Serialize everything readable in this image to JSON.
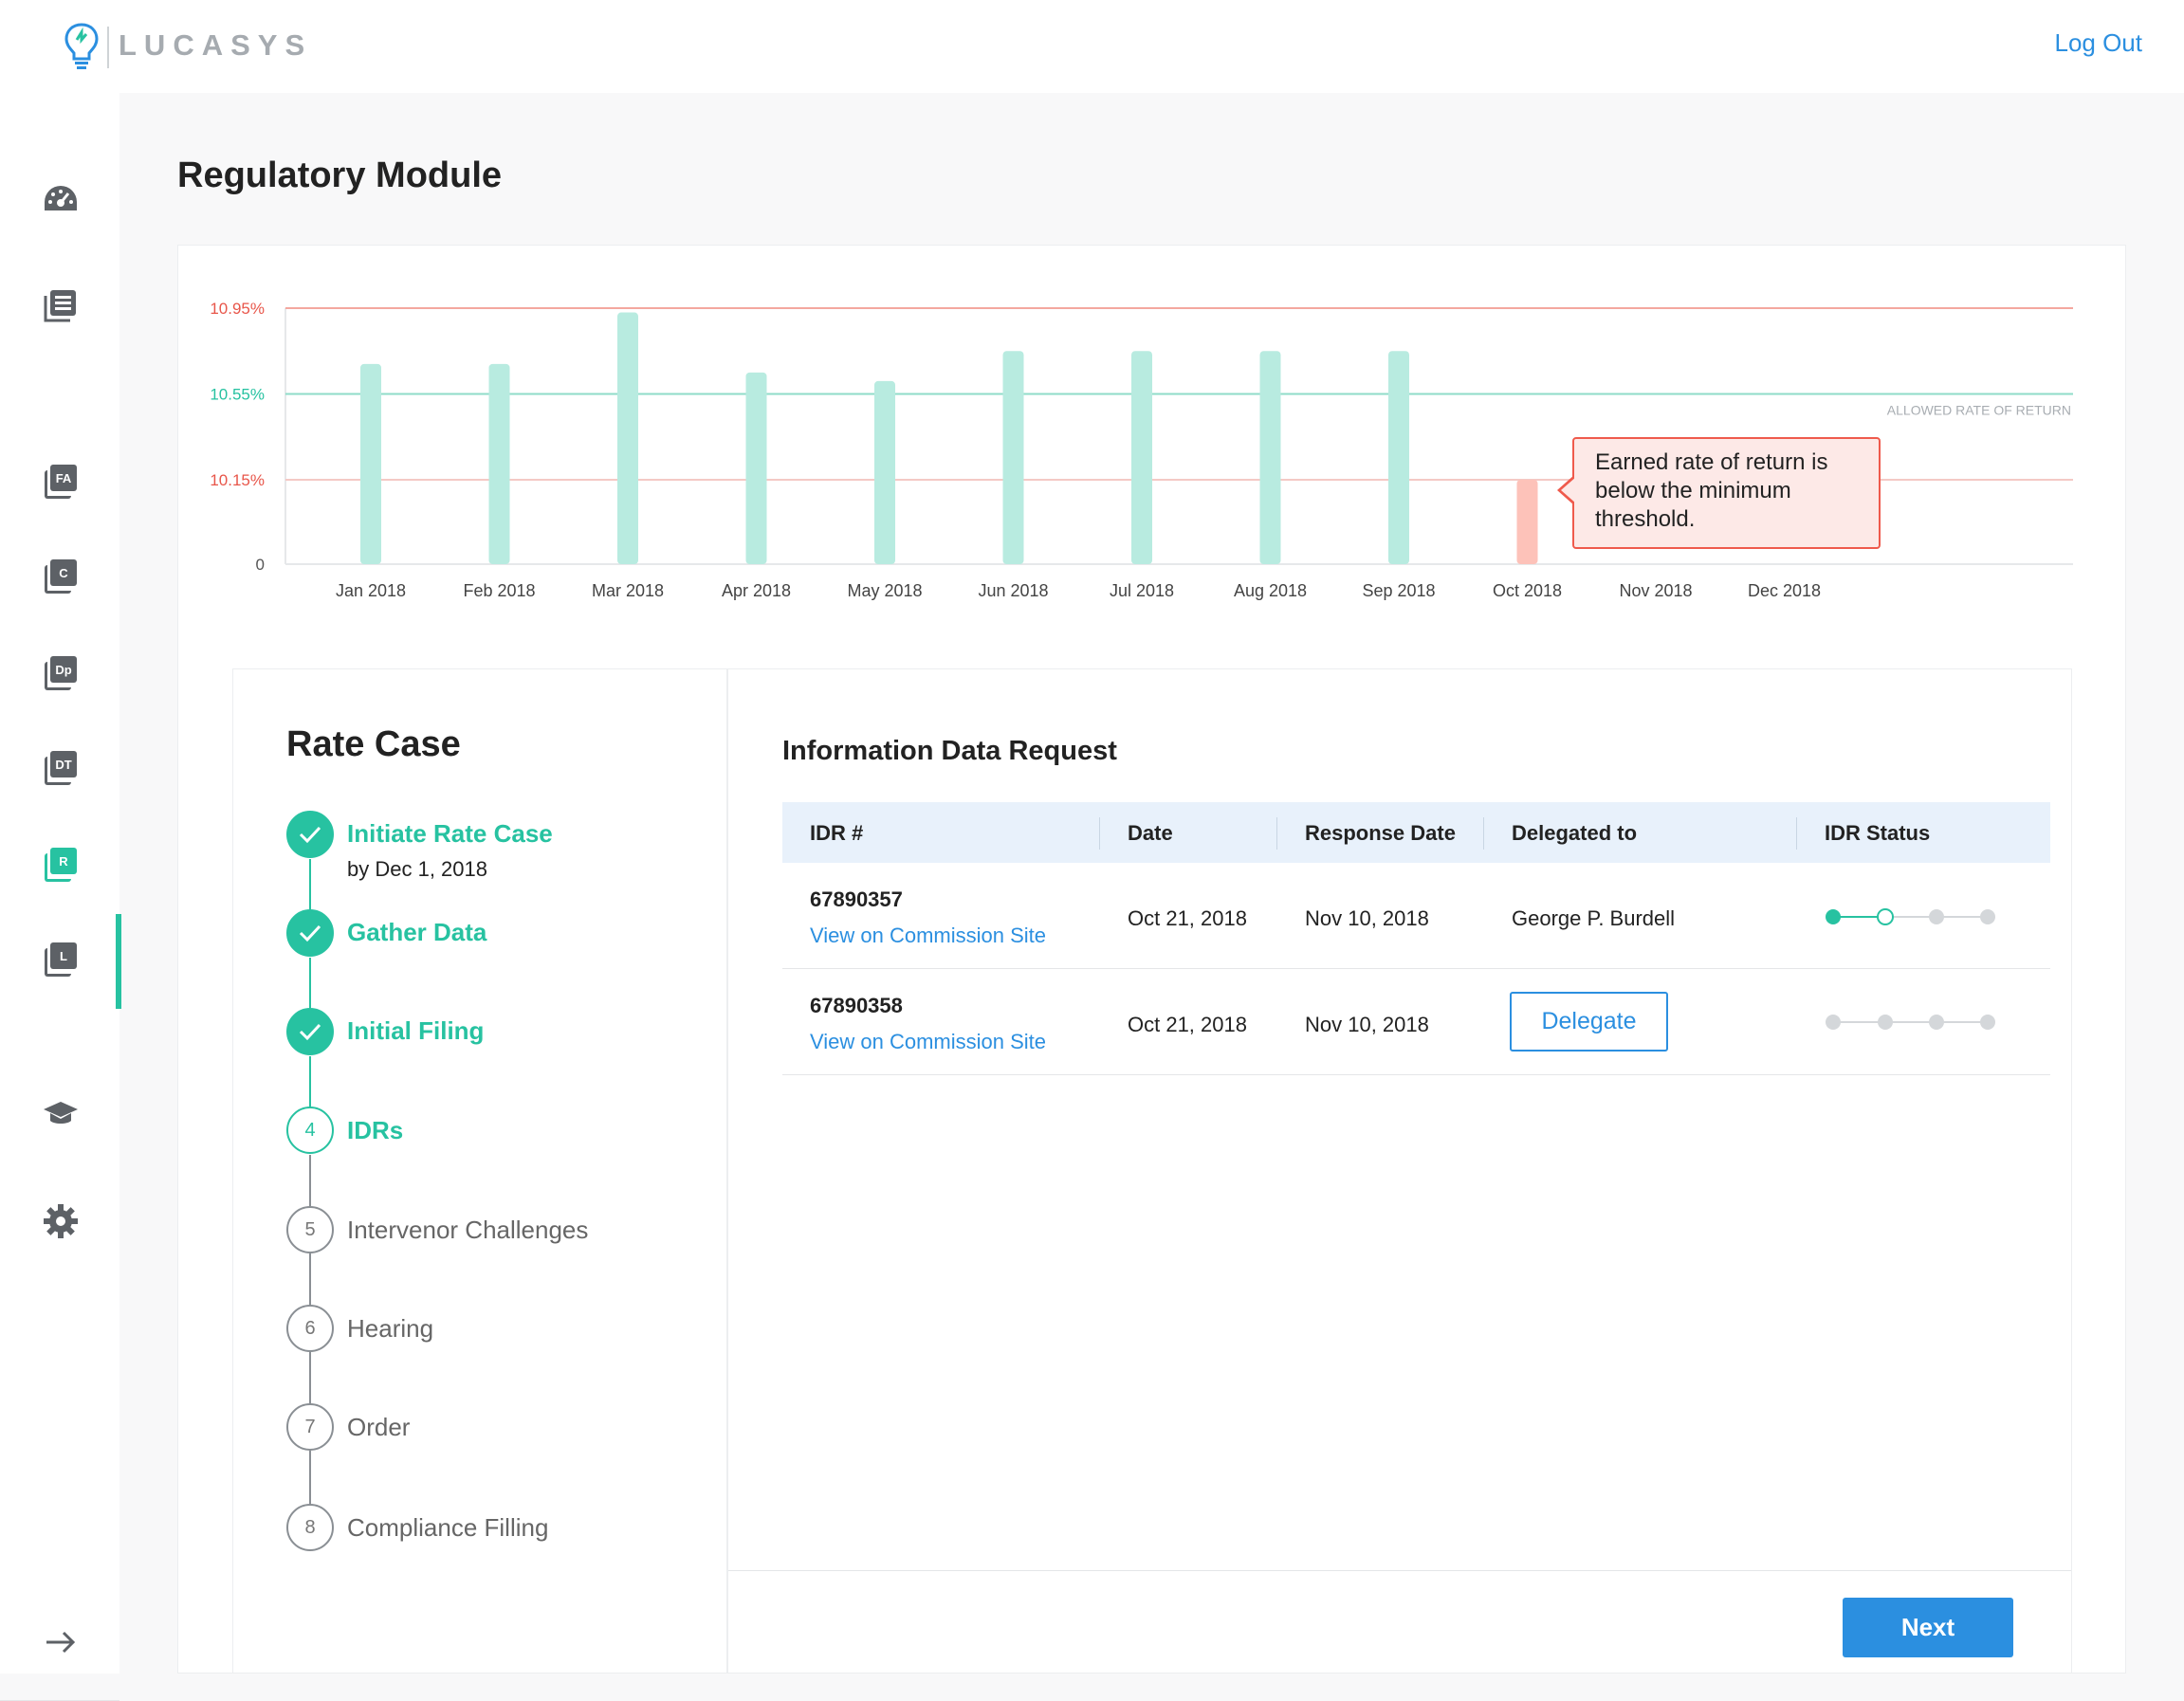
{
  "header": {
    "brand": "LUCASYS",
    "logout_label": "Log Out"
  },
  "sidebar": {
    "items": [
      {
        "name": "dashboard",
        "icon": "dashboard-icon"
      },
      {
        "name": "reports",
        "icon": "list-icon"
      },
      {
        "name": "fa",
        "icon": "FA"
      },
      {
        "name": "c",
        "icon": "C"
      },
      {
        "name": "dp",
        "icon": "Dp"
      },
      {
        "name": "dt",
        "icon": "DT"
      },
      {
        "name": "r",
        "icon": "R",
        "active": true
      },
      {
        "name": "l",
        "icon": "L"
      },
      {
        "name": "learning",
        "icon": "graduation-cap-icon"
      },
      {
        "name": "settings",
        "icon": "gear-icon"
      }
    ],
    "collapse_icon": "arrow-right-icon",
    "accent": "#27c2a1"
  },
  "page_title": "Regulatory Module",
  "chart_data": {
    "type": "bar",
    "categories": [
      "Jan 2018",
      "Feb 2018",
      "Mar 2018",
      "Apr 2018",
      "May 2018",
      "Jun 2018",
      "Jul 2018",
      "Aug 2018",
      "Sep 2018",
      "Oct 2018",
      "Nov 2018",
      "Dec 2018"
    ],
    "values": [
      10.69,
      10.69,
      10.93,
      10.65,
      10.61,
      10.75,
      10.75,
      10.75,
      10.75,
      10.15,
      null,
      null
    ],
    "y_ticks": [
      "10.95%",
      "10.55%",
      "10.15%",
      "0"
    ],
    "reference_lines": [
      {
        "value": 10.95,
        "color": "#f4a79f"
      },
      {
        "value": 10.55,
        "color": "#8fdcc9",
        "label": "ALLOWED RATE OF RETURN"
      },
      {
        "value": 10.15,
        "color": "#f4c9c5"
      }
    ],
    "bar_color": "#b8ebe0",
    "alert_bar_color": "#fdc2b9",
    "tick_colors": {
      "red": "#e8564a",
      "green": "#27c2a1",
      "neutral": "#555555"
    },
    "annotation": "Earned rate of return is below the minimum threshold."
  },
  "rate_case": {
    "title": "Rate Case",
    "steps": [
      {
        "num": "1",
        "label": "Initiate Rate Case",
        "sub": "by Dec 1, 2018",
        "state": "done"
      },
      {
        "num": "2",
        "label": "Gather Data",
        "state": "done"
      },
      {
        "num": "3",
        "label": "Initial Filing",
        "state": "done"
      },
      {
        "num": "4",
        "label": "IDRs",
        "state": "current"
      },
      {
        "num": "5",
        "label": "Intervenor Challenges",
        "state": "todo"
      },
      {
        "num": "6",
        "label": "Hearing",
        "state": "todo"
      },
      {
        "num": "7",
        "label": "Order",
        "state": "todo"
      },
      {
        "num": "8",
        "label": "Compliance Filling",
        "state": "todo"
      }
    ]
  },
  "idr": {
    "title": "Information Data Request",
    "columns": [
      "IDR #",
      "Date",
      "Response Date",
      "Delegated to",
      "IDR Status"
    ],
    "rows": [
      {
        "id": "67890357",
        "link": "View on Commission Site",
        "date": "Oct 21, 2018",
        "response_date": "Nov 10, 2018",
        "delegated_to": "George P. Burdell",
        "status_step": 1
      },
      {
        "id": "67890358",
        "link": "View on Commission Site",
        "date": "Oct 21, 2018",
        "response_date": "Nov 10, 2018",
        "delegated_to": "",
        "delegate_label": "Delegate",
        "status_step": 0
      }
    ],
    "next_label": "Next"
  }
}
